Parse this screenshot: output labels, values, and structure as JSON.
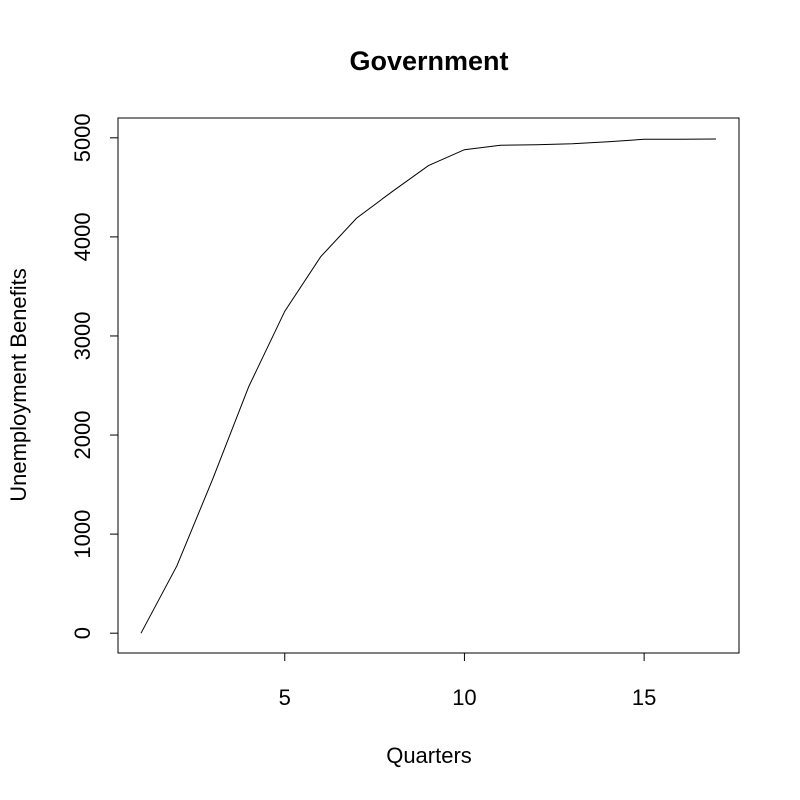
{
  "chart_data": {
    "type": "line",
    "title": "Government",
    "xlabel": "Quarters",
    "ylabel": "Unemployment Benefits",
    "xlim": [
      1,
      17
    ],
    "ylim": [
      0,
      5000
    ],
    "x_ticks": [
      5,
      10,
      15
    ],
    "y_ticks": [
      0,
      1000,
      2000,
      3000,
      4000,
      5000
    ],
    "grid": false,
    "series": [
      {
        "x": [
          1,
          2,
          3,
          4,
          5,
          6,
          7,
          8,
          9,
          10,
          11,
          12,
          13,
          14,
          15,
          16,
          17
        ],
        "values": [
          0,
          680,
          1560,
          2490,
          3250,
          3800,
          4190,
          4460,
          4720,
          4880,
          4925,
          4930,
          4940,
          4960,
          4985,
          4985,
          4988
        ],
        "color": "#000000"
      }
    ]
  }
}
